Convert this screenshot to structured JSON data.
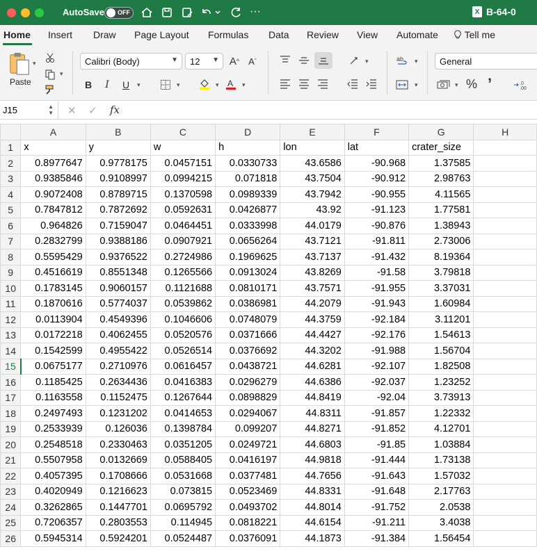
{
  "titlebar": {
    "autosave_label": "AutoSave",
    "autosave_state": "OFF",
    "more": "···",
    "doc_title": "B-64-0",
    "file_badge": "X"
  },
  "tabs": [
    {
      "label": "Home",
      "active": true
    },
    {
      "label": "Insert"
    },
    {
      "label": "Draw"
    },
    {
      "label": "Page Layout"
    },
    {
      "label": "Formulas"
    },
    {
      "label": "Data"
    },
    {
      "label": "Review"
    },
    {
      "label": "View"
    },
    {
      "label": "Automate"
    },
    {
      "label": "Tell me"
    }
  ],
  "ribbon": {
    "paste_label": "Paste",
    "font_name": "Calibri (Body)",
    "font_size": "12",
    "bold": "B",
    "italic": "I",
    "underline": "U",
    "number_format": "General",
    "percent": "%",
    "comma": "ʼ"
  },
  "formula_bar": {
    "cell_ref": "J15",
    "fx": "fx",
    "content": ""
  },
  "sheet": {
    "columns": [
      "A",
      "B",
      "C",
      "D",
      "E",
      "F",
      "G",
      "H"
    ],
    "active_row": 15,
    "rows": [
      {
        "n": "1",
        "cells": [
          "x",
          "y",
          "w",
          "h",
          "lon",
          "lat",
          "crater_size",
          ""
        ]
      },
      {
        "n": "2",
        "cells": [
          "0.8977647",
          "0.9778175",
          "0.0457151",
          "0.0330733",
          "43.6586",
          "-90.968",
          "1.37585",
          ""
        ]
      },
      {
        "n": "3",
        "cells": [
          "0.9385846",
          "0.9108997",
          "0.0994215",
          "0.071818",
          "43.7504",
          "-90.912",
          "2.98763",
          ""
        ]
      },
      {
        "n": "4",
        "cells": [
          "0.9072408",
          "0.8789715",
          "0.1370598",
          "0.0989339",
          "43.7942",
          "-90.955",
          "4.11565",
          ""
        ]
      },
      {
        "n": "5",
        "cells": [
          "0.7847812",
          "0.7872692",
          "0.0592631",
          "0.0426877",
          "43.92",
          "-91.123",
          "1.77581",
          ""
        ]
      },
      {
        "n": "6",
        "cells": [
          "0.964826",
          "0.7159047",
          "0.0464451",
          "0.0333998",
          "44.0179",
          "-90.876",
          "1.38943",
          ""
        ]
      },
      {
        "n": "7",
        "cells": [
          "0.2832799",
          "0.9388186",
          "0.0907921",
          "0.0656264",
          "43.7121",
          "-91.811",
          "2.73006",
          ""
        ]
      },
      {
        "n": "8",
        "cells": [
          "0.5595429",
          "0.9376522",
          "0.2724986",
          "0.1969625",
          "43.7137",
          "-91.432",
          "8.19364",
          ""
        ]
      },
      {
        "n": "9",
        "cells": [
          "0.4516619",
          "0.8551348",
          "0.1265566",
          "0.0913024",
          "43.8269",
          "-91.58",
          "3.79818",
          ""
        ]
      },
      {
        "n": "10",
        "cells": [
          "0.1783145",
          "0.9060157",
          "0.1121688",
          "0.0810171",
          "43.7571",
          "-91.955",
          "3.37031",
          ""
        ]
      },
      {
        "n": "11",
        "cells": [
          "0.1870616",
          "0.5774037",
          "0.0539862",
          "0.0386981",
          "44.2079",
          "-91.943",
          "1.60984",
          ""
        ]
      },
      {
        "n": "12",
        "cells": [
          "0.0113904",
          "0.4549396",
          "0.1046606",
          "0.0748079",
          "44.3759",
          "-92.184",
          "3.11201",
          ""
        ]
      },
      {
        "n": "13",
        "cells": [
          "0.0172218",
          "0.4062455",
          "0.0520576",
          "0.0371666",
          "44.4427",
          "-92.176",
          "1.54613",
          ""
        ]
      },
      {
        "n": "14",
        "cells": [
          "0.1542599",
          "0.4955422",
          "0.0526514",
          "0.0376692",
          "44.3202",
          "-91.988",
          "1.56704",
          ""
        ]
      },
      {
        "n": "15",
        "cells": [
          "0.0675177",
          "0.2710976",
          "0.0616457",
          "0.0438721",
          "44.6281",
          "-92.107",
          "1.82508",
          ""
        ]
      },
      {
        "n": "16",
        "cells": [
          "0.1185425",
          "0.2634436",
          "0.0416383",
          "0.0296279",
          "44.6386",
          "-92.037",
          "1.23252",
          ""
        ]
      },
      {
        "n": "17",
        "cells": [
          "0.1163558",
          "0.1152475",
          "0.1267644",
          "0.0898829",
          "44.8419",
          "-92.04",
          "3.73913",
          ""
        ]
      },
      {
        "n": "18",
        "cells": [
          "0.2497493",
          "0.1231202",
          "0.0414653",
          "0.0294067",
          "44.8311",
          "-91.857",
          "1.22332",
          ""
        ]
      },
      {
        "n": "19",
        "cells": [
          "0.2533939",
          "0.126036",
          "0.1398784",
          "0.099207",
          "44.8271",
          "-91.852",
          "4.12701",
          ""
        ]
      },
      {
        "n": "20",
        "cells": [
          "0.2548518",
          "0.2330463",
          "0.0351205",
          "0.0249721",
          "44.6803",
          "-91.85",
          "1.03884",
          ""
        ]
      },
      {
        "n": "21",
        "cells": [
          "0.5507958",
          "0.0132669",
          "0.0588405",
          "0.0416197",
          "44.9818",
          "-91.444",
          "1.73138",
          ""
        ]
      },
      {
        "n": "22",
        "cells": [
          "0.4057395",
          "0.1708666",
          "0.0531668",
          "0.0377481",
          "44.7656",
          "-91.643",
          "1.57032",
          ""
        ]
      },
      {
        "n": "23",
        "cells": [
          "0.4020949",
          "0.1216623",
          "0.073815",
          "0.0523469",
          "44.8331",
          "-91.648",
          "2.17763",
          ""
        ]
      },
      {
        "n": "24",
        "cells": [
          "0.3262865",
          "0.1447701",
          "0.0695792",
          "0.0493702",
          "44.8014",
          "-91.752",
          "2.0538",
          ""
        ]
      },
      {
        "n": "25",
        "cells": [
          "0.7206357",
          "0.2803553",
          "0.114945",
          "0.0818221",
          "44.6154",
          "-91.211",
          "3.4038",
          ""
        ]
      },
      {
        "n": "26",
        "cells": [
          "0.5945314",
          "0.5924201",
          "0.0524487",
          "0.0376091",
          "44.1873",
          "-91.384",
          "1.56454",
          ""
        ]
      }
    ]
  }
}
